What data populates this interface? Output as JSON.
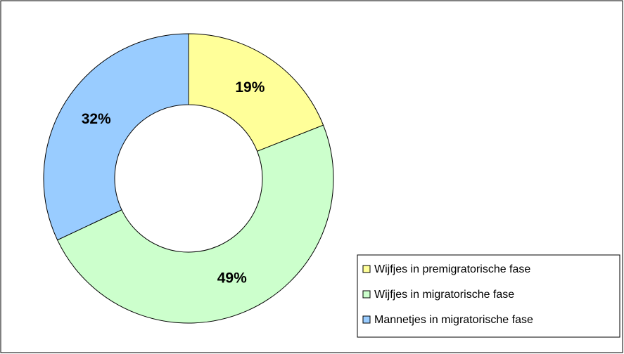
{
  "chart_data": {
    "type": "donut",
    "categories": [
      "Wijfjes in premigratorische fase",
      "Wijfjes in migratorische fase",
      "Mannetjes in migratorische fase"
    ],
    "values": [
      19,
      49,
      32
    ],
    "value_labels": [
      "19%",
      "49%",
      "32%"
    ],
    "colors": [
      "#ffff99",
      "#ccffcc",
      "#99ccff"
    ],
    "legend": "bottom-right"
  }
}
